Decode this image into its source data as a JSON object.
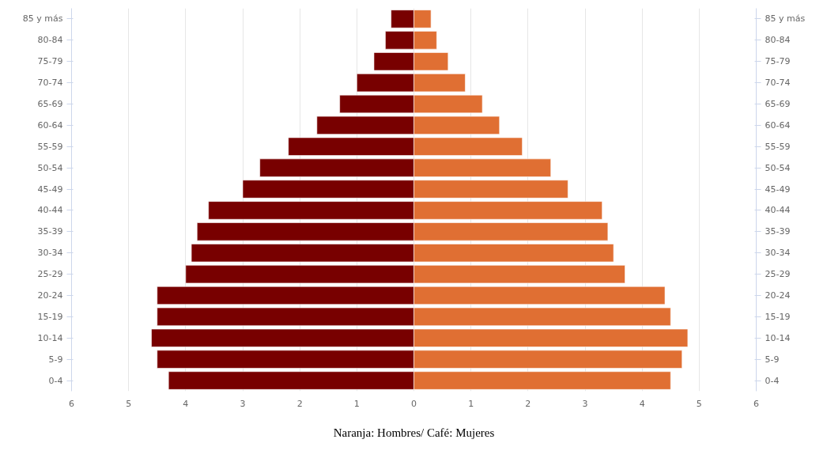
{
  "chart_data": {
    "type": "bar",
    "orientation": "horizontal",
    "categories": [
      "85 y más",
      "80-84",
      "75-79",
      "70-74",
      "65-69",
      "60-64",
      "55-59",
      "50-54",
      "45-49",
      "40-44",
      "35-39",
      "30-34",
      "25-29",
      "20-24",
      "15-19",
      "10-14",
      "5-9",
      "0-4"
    ],
    "series": [
      {
        "color": "#780000",
        "values": [
          -0.4,
          -0.5,
          -0.7,
          -1.0,
          -1.3,
          -1.7,
          -2.2,
          -2.7,
          -3.0,
          -3.6,
          -3.8,
          -3.9,
          -4.0,
          -4.5,
          -4.5,
          -4.6,
          -4.5,
          -4.3
        ]
      },
      {
        "color": "#e06f33",
        "values": [
          0.3,
          0.4,
          0.6,
          0.9,
          1.2,
          1.5,
          1.9,
          2.4,
          2.7,
          3.3,
          3.4,
          3.5,
          3.7,
          4.4,
          4.5,
          4.8,
          4.7,
          4.5
        ]
      }
    ],
    "xlim": [
      -6,
      6
    ],
    "xticks": [
      {
        "value": -6,
        "label": "6"
      },
      {
        "value": -5,
        "label": "5"
      },
      {
        "value": -4,
        "label": "4"
      },
      {
        "value": -3,
        "label": "3"
      },
      {
        "value": -2,
        "label": "2"
      },
      {
        "value": -1,
        "label": "1"
      },
      0,
      1,
      2,
      3,
      4,
      5,
      6
    ],
    "grid": "x",
    "stacked": true,
    "annotations": [
      "Naranja: Hombres/ Café: Mujeres"
    ]
  }
}
